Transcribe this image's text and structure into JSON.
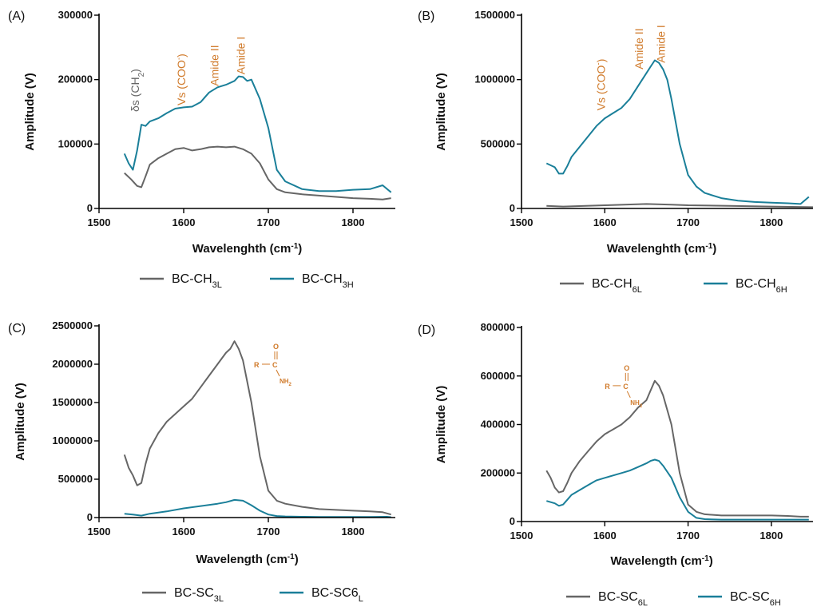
{
  "colors": {
    "gray": "#666666",
    "teal": "#1a7f99",
    "orange": "#d07a2a",
    "axis": "#000000"
  },
  "panels": [
    {
      "id": "a",
      "panel_label": "(A)",
      "annotations": [
        {
          "base": "δs (CH",
          "sub": "2",
          "tail": ")",
          "x": 1547,
          "y": 150000,
          "color": "gray"
        },
        {
          "base": "Vs (COO",
          "sup": "-",
          "tail": ")",
          "x": 1602,
          "y": 160000,
          "color": "orange"
        },
        {
          "base": "Amide II",
          "x": 1641,
          "y": 190000,
          "color": "orange"
        },
        {
          "base": "Amide I",
          "x": 1672,
          "y": 208000,
          "color": "orange"
        }
      ],
      "legend": [
        {
          "base": "BC-CH",
          "sub": "3L",
          "color": "gray"
        },
        {
          "base": "BC-CH",
          "sub": "3H",
          "color": "teal"
        }
      ]
    },
    {
      "id": "b",
      "panel_label": "(B)",
      "annotations": [
        {
          "base": "Vs (COO",
          "sup": "-",
          "tail": ")",
          "x": 1600,
          "y": 760000,
          "color": "orange"
        },
        {
          "base": "Amide II",
          "x": 1646,
          "y": 1080000,
          "color": "orange"
        },
        {
          "base": "Amide I",
          "x": 1672,
          "y": 1130000,
          "color": "orange"
        }
      ],
      "legend": [
        {
          "base": "BC-CH",
          "sub": "6L",
          "color": "gray"
        },
        {
          "base": "BC-CH",
          "sub": "6H",
          "color": "teal"
        }
      ]
    },
    {
      "id": "c",
      "panel_label": "(C)",
      "structure": {
        "r": "R",
        "c": "C",
        "o": "O",
        "nh": "NH",
        "nh_sub": "2",
        "x": 1683,
        "y": 2000000
      },
      "legend": [
        {
          "base": "BC-SC",
          "sub": "3L",
          "color": "gray"
        },
        {
          "base": "BC-SC6",
          "sub": "L",
          "color": "teal"
        }
      ]
    },
    {
      "id": "d",
      "panel_label": "(D)",
      "structure": {
        "r": "R",
        "c": "C",
        "o": "O",
        "nh": "NH",
        "nh_sub": "2",
        "x": 1600,
        "y": 560000
      },
      "legend": [
        {
          "base": "BC-SC",
          "sub": "6L",
          "color": "gray"
        },
        {
          "base": "BC-SC",
          "sub": "6H",
          "color": "teal"
        }
      ]
    }
  ],
  "chart_data": [
    {
      "type": "line",
      "xlabel": "Wavelenghth (cm",
      "xlabel_sup": "-1",
      "xlabel_tail": ")",
      "ylabel": "Amplitude (V)",
      "xlim": [
        1500,
        1850
      ],
      "ylim": [
        0,
        300000
      ],
      "xticks": [
        1500,
        1600,
        1700,
        1800
      ],
      "yticks": [
        0,
        100000,
        200000,
        300000
      ],
      "series": [
        {
          "name": "BC-CH3L",
          "color": "gray",
          "x": [
            1530,
            1538,
            1545,
            1550,
            1555,
            1560,
            1570,
            1580,
            1590,
            1600,
            1610,
            1620,
            1630,
            1640,
            1650,
            1660,
            1670,
            1680,
            1690,
            1700,
            1710,
            1720,
            1740,
            1760,
            1780,
            1800,
            1820,
            1835,
            1845
          ],
          "y": [
            55000,
            45000,
            35000,
            33000,
            50000,
            68000,
            78000,
            85000,
            92000,
            94000,
            90000,
            92000,
            95000,
            96000,
            95000,
            96000,
            92000,
            85000,
            70000,
            45000,
            30000,
            25000,
            22000,
            20000,
            18000,
            16000,
            15000,
            14000,
            16000
          ]
        },
        {
          "name": "BC-CH3H",
          "color": "teal",
          "x": [
            1530,
            1535,
            1540,
            1545,
            1550,
            1555,
            1560,
            1570,
            1580,
            1590,
            1600,
            1610,
            1620,
            1630,
            1640,
            1650,
            1660,
            1665,
            1670,
            1675,
            1680,
            1690,
            1700,
            1710,
            1720,
            1740,
            1760,
            1780,
            1800,
            1820,
            1835,
            1845
          ],
          "y": [
            85000,
            70000,
            60000,
            90000,
            130000,
            128000,
            135000,
            140000,
            148000,
            155000,
            157000,
            158000,
            165000,
            180000,
            188000,
            192000,
            198000,
            205000,
            204000,
            198000,
            200000,
            170000,
            125000,
            60000,
            42000,
            30000,
            27000,
            27000,
            29000,
            30000,
            36000,
            25000
          ]
        }
      ]
    },
    {
      "type": "line",
      "xlabel": "Wavelenghth (cm",
      "xlabel_sup": "-1",
      "xlabel_tail": ")",
      "ylabel": "Amplitude (V)",
      "xlim": [
        1500,
        1850
      ],
      "ylim": [
        0,
        1500000
      ],
      "xticks": [
        1500,
        1600,
        1700,
        1800
      ],
      "yticks": [
        0,
        500000,
        1000000,
        1500000
      ],
      "series": [
        {
          "name": "BC-CH6L",
          "color": "gray",
          "x": [
            1530,
            1550,
            1600,
            1650,
            1680,
            1700,
            1750,
            1800,
            1850
          ],
          "y": [
            20000,
            15000,
            25000,
            35000,
            30000,
            25000,
            20000,
            15000,
            10000
          ]
        },
        {
          "name": "BC-CH6H",
          "color": "teal",
          "x": [
            1530,
            1540,
            1545,
            1550,
            1555,
            1560,
            1570,
            1580,
            1590,
            1600,
            1610,
            1620,
            1630,
            1640,
            1650,
            1655,
            1660,
            1665,
            1670,
            1675,
            1680,
            1690,
            1700,
            1710,
            1720,
            1740,
            1760,
            1780,
            1800,
            1820,
            1835,
            1845
          ],
          "y": [
            350000,
            320000,
            270000,
            270000,
            330000,
            400000,
            480000,
            560000,
            640000,
            700000,
            740000,
            780000,
            850000,
            950000,
            1050000,
            1100000,
            1150000,
            1130000,
            1080000,
            1000000,
            850000,
            500000,
            260000,
            170000,
            120000,
            80000,
            60000,
            50000,
            45000,
            40000,
            35000,
            90000
          ]
        }
      ]
    },
    {
      "type": "line",
      "xlabel": "Wavelength (cm",
      "xlabel_sup": "-1",
      "xlabel_tail": ")",
      "ylabel": "Amplitude (V)",
      "xlim": [
        1500,
        1850
      ],
      "ylim": [
        0,
        2500000
      ],
      "xticks": [
        1500,
        1600,
        1700,
        1800
      ],
      "yticks": [
        0,
        500000,
        1000000,
        1500000,
        2000000,
        2500000
      ],
      "series": [
        {
          "name": "BC-SC3L",
          "color": "gray",
          "x": [
            1530,
            1535,
            1540,
            1545,
            1550,
            1555,
            1560,
            1570,
            1580,
            1590,
            1600,
            1610,
            1620,
            1630,
            1640,
            1650,
            1655,
            1660,
            1665,
            1670,
            1680,
            1690,
            1700,
            1710,
            1720,
            1740,
            1760,
            1780,
            1800,
            1820,
            1835,
            1845
          ],
          "y": [
            820000,
            650000,
            550000,
            420000,
            450000,
            700000,
            900000,
            1100000,
            1250000,
            1350000,
            1450000,
            1550000,
            1700000,
            1850000,
            2000000,
            2150000,
            2200000,
            2300000,
            2200000,
            2050000,
            1500000,
            800000,
            350000,
            220000,
            180000,
            140000,
            110000,
            100000,
            90000,
            80000,
            70000,
            40000
          ]
        },
        {
          "name": "BC-SC6L",
          "color": "teal",
          "x": [
            1530,
            1540,
            1550,
            1560,
            1580,
            1600,
            1620,
            1640,
            1650,
            1660,
            1670,
            1680,
            1690,
            1700,
            1710,
            1720,
            1740,
            1760,
            1780,
            1800,
            1820,
            1840,
            1845
          ],
          "y": [
            50000,
            40000,
            25000,
            50000,
            80000,
            120000,
            150000,
            180000,
            200000,
            230000,
            220000,
            160000,
            90000,
            40000,
            20000,
            15000,
            10000,
            8000,
            8000,
            8000,
            8000,
            10000,
            5000
          ]
        }
      ]
    },
    {
      "type": "line",
      "xlabel": "Wavelength (cm",
      "xlabel_sup": "-1",
      "xlabel_tail": ")",
      "ylabel": "Amplitude (V)",
      "xlim": [
        1500,
        1850
      ],
      "ylim": [
        0,
        800000
      ],
      "xticks": [
        1500,
        1600,
        1700,
        1800
      ],
      "yticks": [
        0,
        200000,
        400000,
        600000,
        800000
      ],
      "series": [
        {
          "name": "BC-SC6L",
          "color": "gray",
          "x": [
            1530,
            1535,
            1540,
            1545,
            1550,
            1555,
            1560,
            1570,
            1580,
            1590,
            1600,
            1610,
            1620,
            1630,
            1640,
            1650,
            1655,
            1660,
            1665,
            1670,
            1680,
            1690,
            1700,
            1710,
            1720,
            1740,
            1760,
            1780,
            1800,
            1820,
            1835,
            1845
          ],
          "y": [
            210000,
            180000,
            140000,
            120000,
            125000,
            160000,
            200000,
            250000,
            290000,
            330000,
            360000,
            380000,
            400000,
            430000,
            470000,
            500000,
            540000,
            580000,
            560000,
            520000,
            400000,
            200000,
            70000,
            40000,
            30000,
            25000,
            25000,
            25000,
            25000,
            23000,
            20000,
            20000
          ]
        },
        {
          "name": "BC-SC6H",
          "color": "teal",
          "x": [
            1530,
            1540,
            1545,
            1550,
            1555,
            1560,
            1570,
            1580,
            1590,
            1600,
            1610,
            1620,
            1630,
            1640,
            1650,
            1655,
            1660,
            1665,
            1670,
            1680,
            1690,
            1700,
            1710,
            1720,
            1740,
            1760,
            1780,
            1800,
            1820,
            1840,
            1845
          ],
          "y": [
            85000,
            75000,
            65000,
            70000,
            90000,
            110000,
            130000,
            150000,
            170000,
            180000,
            190000,
            200000,
            210000,
            225000,
            240000,
            250000,
            255000,
            250000,
            230000,
            180000,
            100000,
            40000,
            15000,
            10000,
            8000,
            8000,
            8000,
            8000,
            8000,
            8000,
            8000
          ]
        }
      ]
    }
  ]
}
